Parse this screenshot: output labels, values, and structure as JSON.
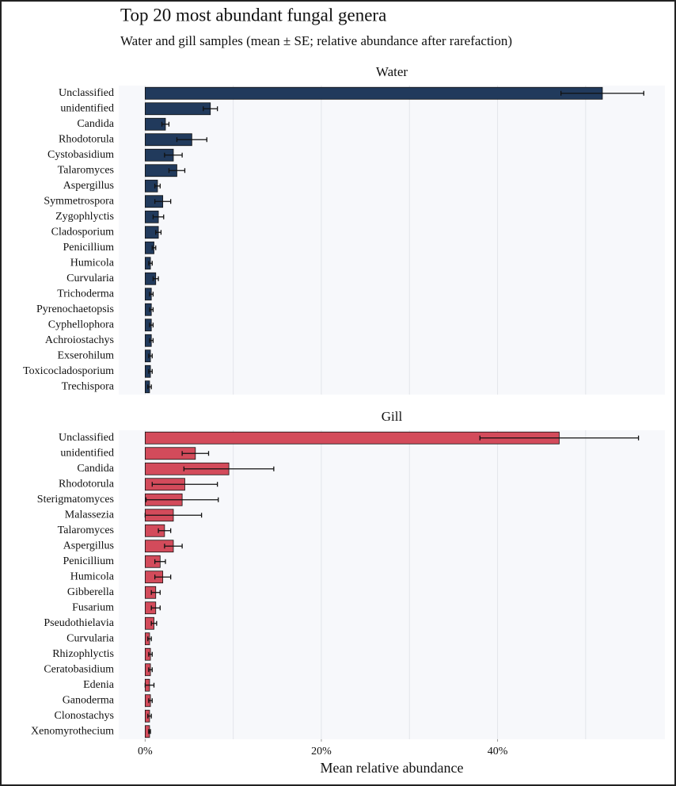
{
  "title": "Top 20 most abundant fungal genera",
  "subtitle": "Water and gill samples (mean ± SE; relative abundance after rarefaction)",
  "chart_data": [
    {
      "type": "bar",
      "orientation": "horizontal",
      "title": "Water",
      "color": "#213a5c",
      "categories": [
        "Unclassified",
        "unidentified",
        "Candida",
        "Rhodotorula",
        "Cystobasidium",
        "Talaromyces",
        "Aspergillus",
        "Symmetrospora",
        "Zygophlyctis",
        "Cladosporium",
        "Penicillium",
        "Humicola",
        "Curvularia",
        "Trichoderma",
        "Pyrenochaetopsis",
        "Cyphellophora",
        "Achroiostachys",
        "Exserohilum",
        "Toxicocladosporium",
        "Trechispora"
      ],
      "values": [
        51.9,
        7.4,
        2.3,
        5.3,
        3.2,
        3.6,
        1.4,
        2.0,
        1.5,
        1.5,
        1.0,
        0.6,
        1.2,
        0.7,
        0.7,
        0.7,
        0.7,
        0.6,
        0.6,
        0.5
      ],
      "errors": [
        4.7,
        0.8,
        0.4,
        1.7,
        1.0,
        0.9,
        0.3,
        0.9,
        0.6,
        0.3,
        0.2,
        0.2,
        0.3,
        0.2,
        0.2,
        0.2,
        0.2,
        0.2,
        0.2,
        0.2
      ],
      "xlim": [
        -3,
        59
      ],
      "grid_x": [
        0,
        10,
        20,
        30,
        40,
        50
      ]
    },
    {
      "type": "bar",
      "orientation": "horizontal",
      "title": "Gill",
      "color": "#d34b5b",
      "categories": [
        "Unclassified",
        "unidentified",
        "Candida",
        "Rhodotorula",
        "Sterigmatomyces",
        "Malassezia",
        "Talaromyces",
        "Aspergillus",
        "Penicillium",
        "Humicola",
        "Gibberella",
        "Fusarium",
        "Pseudothielavia",
        "Curvularia",
        "Rhizophlyctis",
        "Ceratobasidium",
        "Edenia",
        "Ganoderma",
        "Clonostachys",
        "Xenomyrothecium"
      ],
      "values": [
        47.0,
        5.7,
        9.5,
        4.5,
        4.2,
        3.2,
        2.2,
        3.2,
        1.7,
        2.0,
        1.2,
        1.2,
        1.0,
        0.5,
        0.6,
        0.6,
        0.5,
        0.6,
        0.5,
        0.5
      ],
      "errors": [
        9.0,
        1.5,
        5.1,
        3.7,
        4.1,
        3.2,
        0.7,
        1.0,
        0.6,
        0.9,
        0.5,
        0.5,
        0.3,
        0.2,
        0.2,
        0.2,
        0.5,
        0.2,
        0.2,
        0.1
      ],
      "xlim": [
        -3,
        59
      ],
      "grid_x": [
        0,
        10,
        20,
        30,
        40,
        50
      ],
      "xticks": [
        {
          "value": 0,
          "label": "0%"
        },
        {
          "value": 20,
          "label": "20%"
        },
        {
          "value": 40,
          "label": "40%"
        }
      ],
      "xlabel": "Mean relative abundance"
    }
  ]
}
